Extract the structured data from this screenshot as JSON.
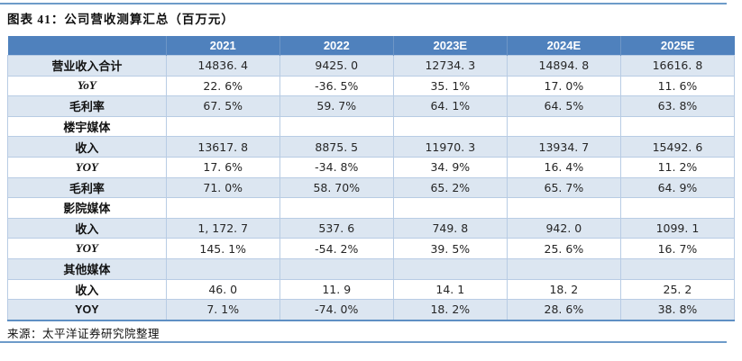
{
  "page": {
    "title": "图表 41：公司营收测算汇总（百万元）",
    "source": "来源：太平洋证券研究院整理"
  },
  "colors": {
    "header_bg": "#4F81BD",
    "header_text": "#FFFFFF",
    "row_shaded_bg": "#DCE6F1",
    "row_plain_bg": "#FFFFFF",
    "grid_line": "#B8CCE4",
    "rule_blue": "#6D9BC9",
    "table_bottom_border": "#5E8FC4",
    "body_text": "#262626"
  },
  "table": {
    "header": [
      "",
      "2021",
      "2022",
      "2023E",
      "2024E",
      "2025E"
    ],
    "rows": [
      {
        "label": "营业收入合计",
        "section": false,
        "italic": false,
        "values": [
          "14836. 4",
          "9425. 0",
          "12734. 3",
          "14894. 8",
          "16616. 8"
        ]
      },
      {
        "label": "YoY",
        "section": false,
        "italic": true,
        "values": [
          "22. 6%",
          "-36. 5%",
          "35. 1%",
          "17. 0%",
          "11. 6%"
        ]
      },
      {
        "label": "毛利率",
        "section": false,
        "italic": false,
        "values": [
          "67. 5%",
          "59. 7%",
          "64. 1%",
          "64. 5%",
          "63. 8%"
        ]
      },
      {
        "label": "楼宇媒体",
        "section": true,
        "italic": false,
        "values": [
          "",
          "",
          "",
          "",
          ""
        ]
      },
      {
        "label": "收入",
        "section": false,
        "italic": false,
        "values": [
          "13617. 8",
          "8875. 5",
          "11970. 3",
          "13934. 7",
          "15492. 6"
        ]
      },
      {
        "label": "YOY",
        "section": false,
        "italic": true,
        "values": [
          "17. 6%",
          "-34. 8%",
          "34. 9%",
          "16. 4%",
          "11. 2%"
        ]
      },
      {
        "label": "毛利率",
        "section": false,
        "italic": false,
        "values": [
          "71. 0%",
          "58. 70%",
          "65. 2%",
          "65. 7%",
          "64. 9%"
        ]
      },
      {
        "label": "影院媒体",
        "section": true,
        "italic": false,
        "values": [
          "",
          "",
          "",
          "",
          ""
        ]
      },
      {
        "label": "收入",
        "section": false,
        "italic": false,
        "values": [
          "1, 172. 7",
          "537. 6",
          "749. 8",
          "942. 0",
          "1099. 1"
        ]
      },
      {
        "label": "YOY",
        "section": false,
        "italic": true,
        "values": [
          "145. 1%",
          "-54. 2%",
          "39. 5%",
          "25. 6%",
          "16. 7%"
        ]
      },
      {
        "label": "其他媒体",
        "section": true,
        "italic": false,
        "values": [
          "",
          "",
          "",
          "",
          ""
        ]
      },
      {
        "label": "收入",
        "section": false,
        "italic": false,
        "values": [
          "46. 0",
          "11. 9",
          "14. 1",
          "18. 2",
          "25. 2"
        ]
      },
      {
        "label": "YOY",
        "section": false,
        "italic": false,
        "upright": true,
        "values": [
          "7. 1%",
          "-74. 0%",
          "18. 2%",
          "28. 6%",
          "38. 8%"
        ]
      }
    ]
  }
}
